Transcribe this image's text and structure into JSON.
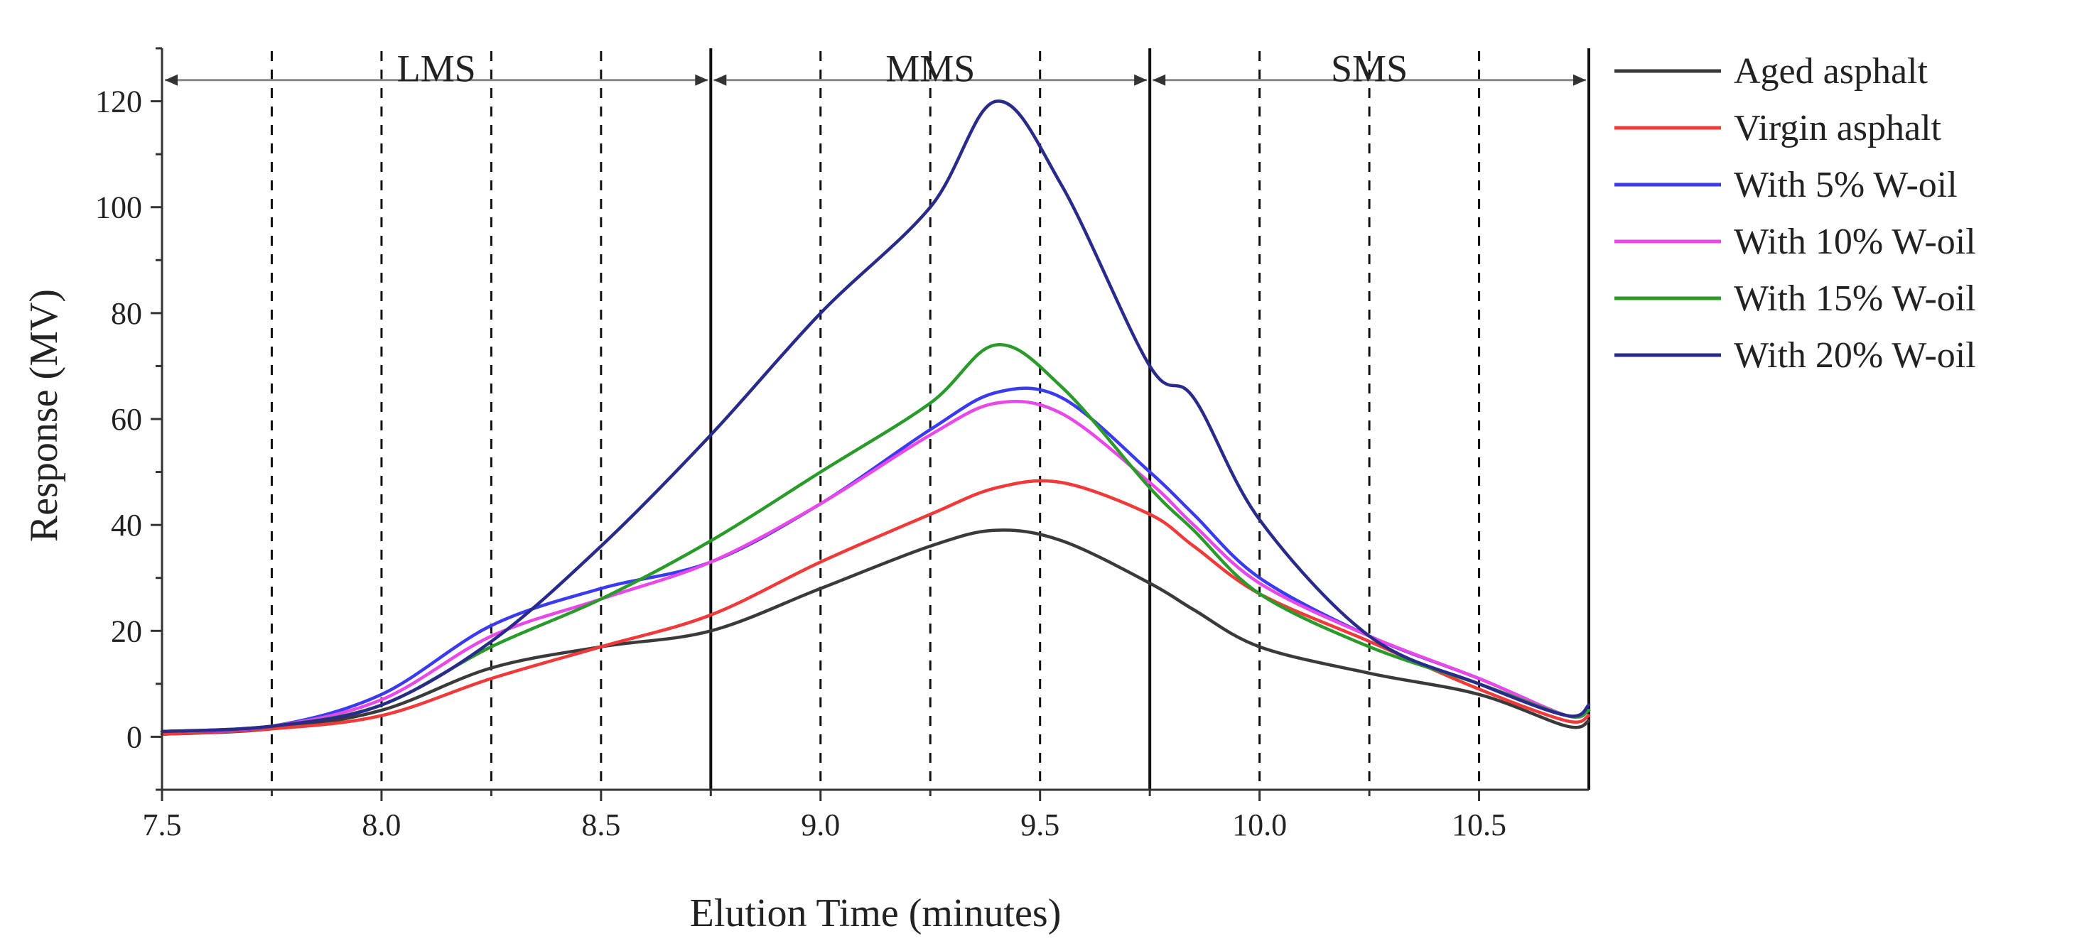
{
  "chart_data": {
    "type": "line",
    "title": "",
    "xlabel": "Elution Time (minutes)",
    "ylabel": "Response (MV)",
    "xlim": [
      7.5,
      10.75
    ],
    "ylim": [
      -10,
      130
    ],
    "xticks": [
      7.5,
      8.0,
      8.5,
      9.0,
      9.5,
      10.0,
      10.5
    ],
    "xtick_labels": [
      "7.5",
      "8.0",
      "8.5",
      "9.0",
      "9.5",
      "10.0",
      "10.5"
    ],
    "yticks": [
      0,
      20,
      40,
      60,
      80,
      100,
      120
    ],
    "ytick_labels": [
      "0",
      "20",
      "40",
      "60",
      "80",
      "100",
      "120"
    ],
    "grid": false,
    "legend_position": "right",
    "regions": [
      {
        "label": "LMS",
        "start": 7.5,
        "end": 8.75
      },
      {
        "label": "MMS",
        "start": 8.75,
        "end": 9.75
      },
      {
        "label": "SMS",
        "start": 9.75,
        "end": 10.75
      }
    ],
    "region_boundaries": [
      8.75,
      9.75,
      10.75
    ],
    "dashed_lines": [
      7.75,
      8.0,
      8.25,
      8.5,
      9.0,
      9.25,
      9.5,
      10.0,
      10.25,
      10.5
    ],
    "x": [
      7.5,
      7.75,
      8.0,
      8.25,
      8.5,
      8.75,
      9.0,
      9.25,
      9.4,
      9.55,
      9.75,
      9.85,
      10.0,
      10.25,
      10.5,
      10.7,
      10.75
    ],
    "series": [
      {
        "name": "Aged asphalt",
        "color": "#3a3a3a",
        "values": [
          0.5,
          1.5,
          5,
          13,
          17,
          20,
          28,
          36,
          39,
          37,
          29,
          24,
          17,
          12,
          8,
          2,
          3
        ]
      },
      {
        "name": "Virgin asphalt",
        "color": "#f03a3a",
        "values": [
          0.5,
          1.5,
          4,
          11,
          17,
          23,
          33,
          42,
          47,
          48,
          42,
          36,
          27,
          18,
          9,
          3,
          4
        ]
      },
      {
        "name": "With 5% W-oil",
        "color": "#3a3af0",
        "values": [
          1,
          2,
          8,
          21,
          28,
          33,
          44,
          58,
          65,
          64,
          50,
          42,
          30,
          19,
          11,
          4,
          5
        ]
      },
      {
        "name": "With 10% W-oil",
        "color": "#e848e8",
        "values": [
          1,
          2,
          7,
          19,
          26,
          33,
          44,
          57,
          63,
          61,
          48,
          40,
          29,
          19,
          11,
          4,
          5
        ]
      },
      {
        "name": "With 15% W-oil",
        "color": "#2a9a2a",
        "values": [
          1,
          2,
          6,
          17,
          26,
          37,
          50,
          63,
          74,
          66,
          47,
          39,
          27,
          17,
          10,
          4,
          5
        ]
      },
      {
        "name": "With 20% W-oil",
        "color": "#2a2a8a",
        "values": [
          1,
          2,
          6,
          18,
          36,
          57,
          80,
          100,
          120,
          104,
          70,
          64,
          41,
          19,
          10,
          4,
          6
        ]
      }
    ]
  }
}
